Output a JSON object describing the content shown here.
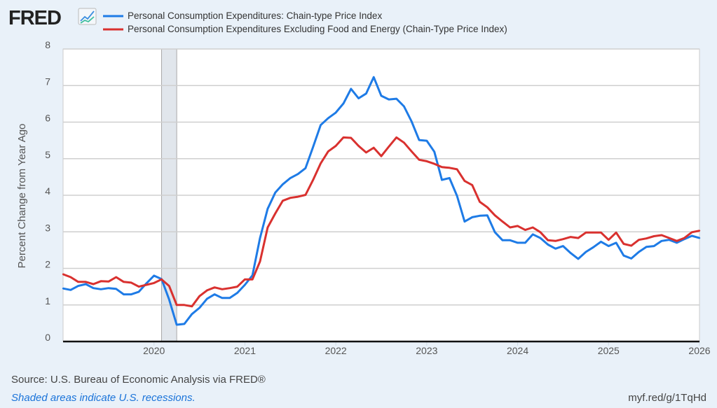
{
  "header": {
    "logo_text": "FRED",
    "logo_icon": "line-chart-icon"
  },
  "footer": {
    "source": "Source: U.S. Bureau of Economic Analysis via FRED®",
    "recession_note": "Shaded areas indicate U.S. recessions.",
    "short_url": "myf.red/g/1TqHd"
  },
  "chart_data": {
    "type": "line",
    "title": "",
    "xlabel": "",
    "ylabel": "Percent Change from Year Ago",
    "ylim": [
      0,
      8
    ],
    "yticks": [
      "0",
      "1",
      "2",
      "3",
      "4",
      "5",
      "6",
      "7",
      "8"
    ],
    "xticks": [
      "2020",
      "2021",
      "2022",
      "2023",
      "2024",
      "2025",
      "2026"
    ],
    "xlim": [
      "2019-01",
      "2026-01"
    ],
    "grid": "horizontal",
    "legend_position": "top",
    "recessions": [
      {
        "start": "2020-02",
        "end": "2020-04",
        "color": "#e1e6ec"
      }
    ],
    "x": [
      "2019-01",
      "2019-02",
      "2019-03",
      "2019-04",
      "2019-05",
      "2019-06",
      "2019-07",
      "2019-08",
      "2019-09",
      "2019-10",
      "2019-11",
      "2019-12",
      "2020-01",
      "2020-02",
      "2020-03",
      "2020-04",
      "2020-05",
      "2020-06",
      "2020-07",
      "2020-08",
      "2020-09",
      "2020-10",
      "2020-11",
      "2020-12",
      "2021-01",
      "2021-02",
      "2021-03",
      "2021-04",
      "2021-05",
      "2021-06",
      "2021-07",
      "2021-08",
      "2021-09",
      "2021-10",
      "2021-11",
      "2021-12",
      "2022-01",
      "2022-02",
      "2022-03",
      "2022-04",
      "2022-05",
      "2022-06",
      "2022-07",
      "2022-08",
      "2022-09",
      "2022-10",
      "2022-11",
      "2022-12",
      "2023-01",
      "2023-02",
      "2023-03",
      "2023-04",
      "2023-05",
      "2023-06",
      "2023-07",
      "2023-08",
      "2023-09",
      "2023-10",
      "2023-11",
      "2023-12",
      "2024-01",
      "2024-02",
      "2024-03",
      "2024-04",
      "2024-05",
      "2024-06",
      "2024-07",
      "2024-08",
      "2024-09",
      "2024-10",
      "2024-11",
      "2024-12",
      "2025-01",
      "2025-02",
      "2025-03",
      "2025-04",
      "2025-05",
      "2025-06",
      "2025-07",
      "2025-08",
      "2025-09",
      "2025-10",
      "2025-11",
      "2025-12",
      "2026-01"
    ],
    "series": [
      {
        "name": "Personal Consumption Expenditures: Chain-type Price Index",
        "color": "#1e7be6",
        "values": [
          1.45,
          1.41,
          1.52,
          1.57,
          1.46,
          1.43,
          1.46,
          1.44,
          1.29,
          1.29,
          1.36,
          1.59,
          1.8,
          1.71,
          1.15,
          0.46,
          0.48,
          0.75,
          0.92,
          1.17,
          1.29,
          1.19,
          1.19,
          1.33,
          1.55,
          1.81,
          2.83,
          3.63,
          4.07,
          4.3,
          4.47,
          4.58,
          4.74,
          5.32,
          5.92,
          6.11,
          6.26,
          6.51,
          6.91,
          6.65,
          6.78,
          7.23,
          6.72,
          6.62,
          6.64,
          6.43,
          6.02,
          5.51,
          5.49,
          5.19,
          4.42,
          4.47,
          3.98,
          3.28,
          3.4,
          3.44,
          3.45,
          2.99,
          2.77,
          2.77,
          2.7,
          2.7,
          2.93,
          2.83,
          2.65,
          2.54,
          2.61,
          2.42,
          2.26,
          2.45,
          2.58,
          2.73,
          2.61,
          2.7,
          2.35,
          2.27,
          2.45,
          2.59,
          2.61,
          2.75,
          2.78,
          2.7,
          2.8,
          2.89,
          2.83
        ]
      },
      {
        "name": "Personal Consumption Expenditures Excluding Food and Energy (Chain-Type Price Index)",
        "color": "#d9312f",
        "values": [
          1.84,
          1.76,
          1.63,
          1.63,
          1.57,
          1.65,
          1.64,
          1.76,
          1.63,
          1.61,
          1.5,
          1.55,
          1.6,
          1.7,
          1.52,
          1.0,
          1.0,
          0.96,
          1.24,
          1.4,
          1.48,
          1.43,
          1.46,
          1.5,
          1.7,
          1.7,
          2.19,
          3.12,
          3.5,
          3.85,
          3.93,
          3.96,
          4.01,
          4.42,
          4.87,
          5.2,
          5.35,
          5.58,
          5.57,
          5.35,
          5.17,
          5.3,
          5.07,
          5.33,
          5.58,
          5.44,
          5.2,
          4.97,
          4.93,
          4.86,
          4.77,
          4.75,
          4.71,
          4.39,
          4.28,
          3.82,
          3.67,
          3.45,
          3.28,
          3.12,
          3.16,
          3.05,
          3.12,
          2.99,
          2.77,
          2.75,
          2.8,
          2.86,
          2.83,
          2.98,
          2.98,
          2.98,
          2.78,
          2.98,
          2.67,
          2.62,
          2.78,
          2.82,
          2.88,
          2.91,
          2.83,
          2.75,
          2.83,
          2.99,
          3.03
        ]
      }
    ]
  }
}
